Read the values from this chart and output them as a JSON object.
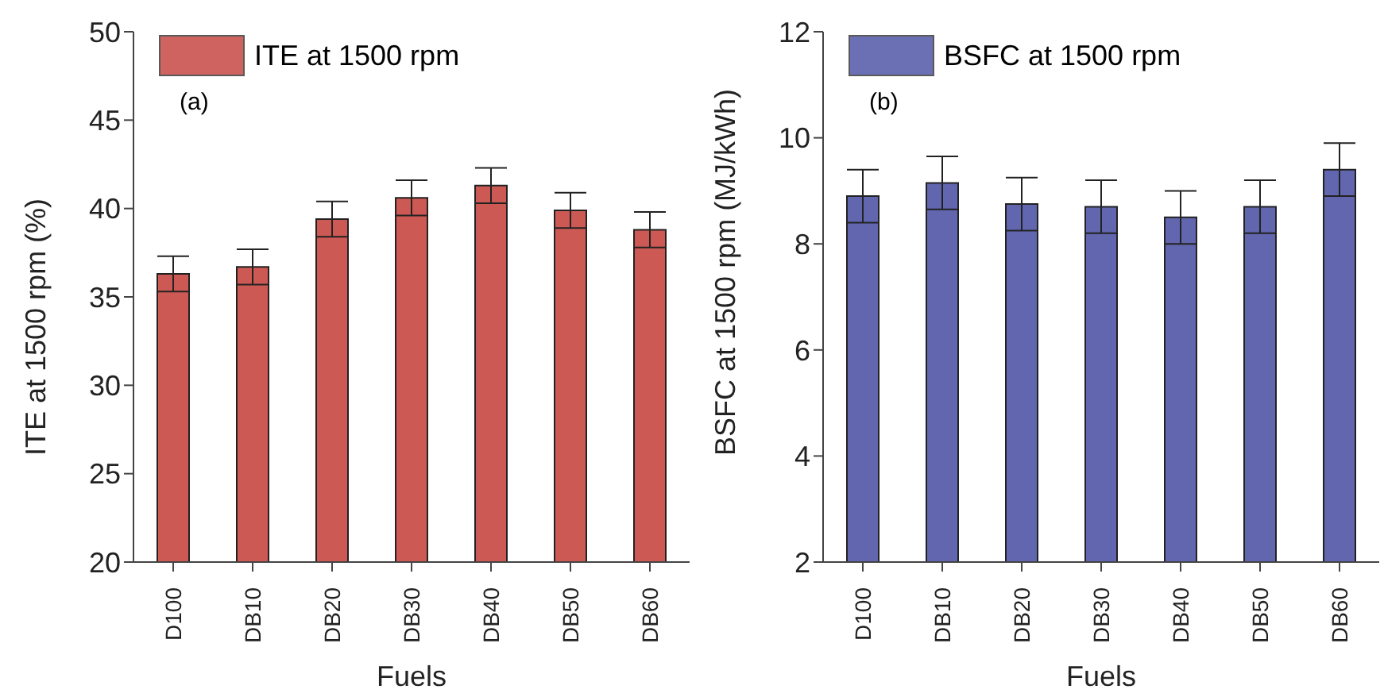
{
  "chart_data": [
    {
      "type": "bar",
      "xlabel": "Fuels",
      "ylabel": "ITE at 1500 rpm (%)",
      "categories": [
        "D100",
        "DB10",
        "DB20",
        "DB30",
        "DB40",
        "DB50",
        "DB60"
      ],
      "series": [
        {
          "name": "ITE at 1500 rpm",
          "color": "#c0302a",
          "values": [
            36.3,
            36.7,
            39.4,
            40.6,
            41.3,
            39.9,
            38.8
          ],
          "errors": [
            1,
            1,
            1,
            1,
            1,
            1,
            1
          ]
        }
      ],
      "ylim": [
        20,
        50
      ],
      "yticks": [
        20,
        25,
        30,
        35,
        40,
        45,
        50
      ],
      "grid": false,
      "legend": "top left",
      "annotations": [
        "(a)"
      ]
    },
    {
      "type": "bar",
      "xlabel": "Fuels",
      "ylabel": "BSFC at 1500 rpm (MJ/kWh)",
      "categories": [
        "D100",
        "DB10",
        "DB20",
        "DB30",
        "DB40",
        "DB50",
        "DB60"
      ],
      "series": [
        {
          "name": "BSFC at 1500 rpm",
          "color": "#3a409a",
          "values": [
            8.9,
            9.15,
            8.75,
            8.7,
            8.5,
            8.7,
            9.4
          ],
          "errors": [
            0.5,
            0.5,
            0.5,
            0.5,
            0.5,
            0.5,
            0.5
          ]
        }
      ],
      "ylim": [
        2,
        12
      ],
      "yticks": [
        2,
        4,
        6,
        8,
        10,
        12
      ],
      "grid": false,
      "legend": "top left",
      "annotations": [
        "(b)"
      ]
    }
  ]
}
